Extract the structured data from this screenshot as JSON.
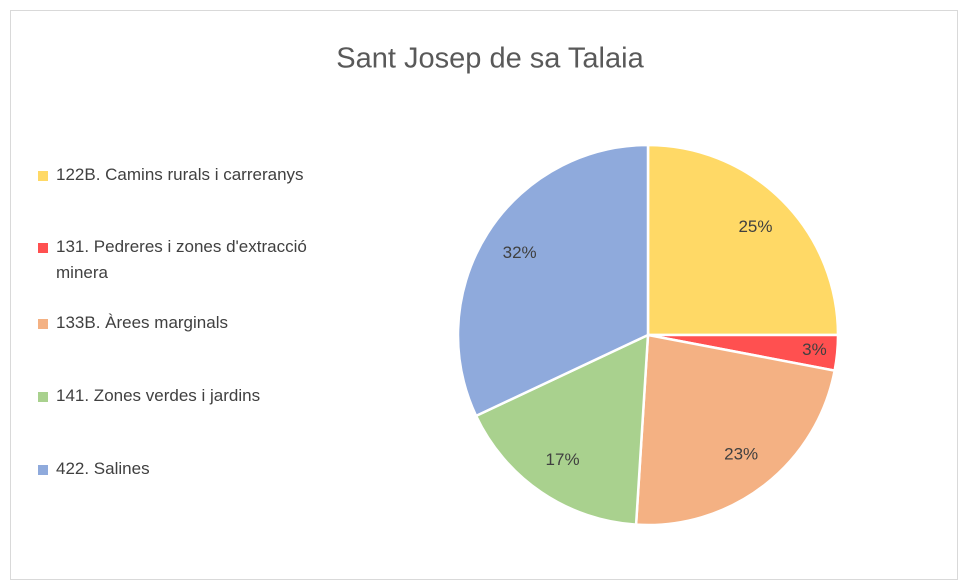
{
  "chart_data": {
    "type": "pie",
    "title": "Sant Josep de sa Talaia",
    "categories": [
      "122B. Camins rurals i carreranys",
      "131. Pedreres i zones d'extracció minera",
      "133B. Àrees marginals",
      "141. Zones verdes i jardins",
      "422. Salines"
    ],
    "values": [
      25,
      3,
      23,
      17,
      32
    ],
    "value_labels": [
      "25%",
      "3%",
      "23%",
      "17%",
      "32%"
    ],
    "colors": [
      "#FFD966",
      "#FF5050",
      "#F4B183",
      "#A9D18E",
      "#8FAADC"
    ],
    "legend": "left"
  }
}
